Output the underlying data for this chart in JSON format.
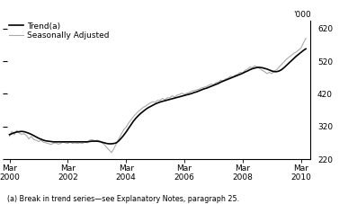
{
  "footnote": "(a) Break in trend series—see Explanatory Notes, paragraph 25.",
  "legend": [
    "Trend(a)",
    "Seasonally Adjusted"
  ],
  "legend_colors": [
    "#000000",
    "#aaaaaa"
  ],
  "xlim_start": 1999.92,
  "xlim_end": 2010.33,
  "ylim_bottom": 220,
  "ylim_top": 645,
  "yticks": [
    220,
    320,
    420,
    520,
    620
  ],
  "xtick_positions": [
    2000.0,
    2002.0,
    2004.0,
    2006.0,
    2008.0,
    2010.0
  ],
  "xtick_labels": [
    "Mar\n2000",
    "Mar\n2002",
    "Mar\n2004",
    "Mar\n2006",
    "Mar\n2008",
    "Mar\n2010"
  ],
  "trend_x": [
    2000.0,
    2000.083,
    2000.167,
    2000.25,
    2000.333,
    2000.417,
    2000.5,
    2000.583,
    2000.667,
    2000.75,
    2000.833,
    2000.917,
    2001.0,
    2001.083,
    2001.167,
    2001.25,
    2001.333,
    2001.417,
    2001.5,
    2001.583,
    2001.667,
    2001.75,
    2001.833,
    2001.917,
    2002.0,
    2002.083,
    2002.167,
    2002.25,
    2002.333,
    2002.417,
    2002.5,
    2002.583,
    2002.667,
    2002.75,
    2002.833,
    2002.917,
    2003.0,
    2003.083,
    2003.167,
    2003.25,
    2003.333,
    2003.417,
    2003.5,
    2003.583,
    2003.667,
    2003.75,
    2003.833,
    2003.917,
    2004.0,
    2004.083,
    2004.167,
    2004.25,
    2004.333,
    2004.417,
    2004.5,
    2004.583,
    2004.667,
    2004.75,
    2004.833,
    2004.917,
    2005.0,
    2005.083,
    2005.167,
    2005.25,
    2005.333,
    2005.417,
    2005.5,
    2005.583,
    2005.667,
    2005.75,
    2005.833,
    2005.917,
    2006.0,
    2006.083,
    2006.167,
    2006.25,
    2006.333,
    2006.417,
    2006.5,
    2006.583,
    2006.667,
    2006.75,
    2006.833,
    2006.917,
    2007.0,
    2007.083,
    2007.167,
    2007.25,
    2007.333,
    2007.417,
    2007.5,
    2007.583,
    2007.667,
    2007.75,
    2007.833,
    2007.917,
    2008.0,
    2008.083,
    2008.167,
    2008.25,
    2008.333,
    2008.417,
    2008.5,
    2008.583,
    2008.667,
    2008.75,
    2008.833,
    2008.917,
    2009.0,
    2009.083,
    2009.167,
    2009.25,
    2009.333,
    2009.417,
    2009.5,
    2009.583,
    2009.667,
    2009.75,
    2009.833,
    2009.917,
    2010.0,
    2010.083,
    2010.167
  ],
  "trend_y": [
    295,
    298,
    301,
    303,
    304,
    305,
    304,
    302,
    299,
    296,
    292,
    288,
    284,
    281,
    278,
    276,
    275,
    274,
    273,
    273,
    273,
    273,
    273,
    273,
    273,
    273,
    273,
    273,
    273,
    273,
    273,
    273,
    273,
    274,
    275,
    275,
    275,
    274,
    272,
    270,
    268,
    267,
    267,
    268,
    270,
    276,
    284,
    293,
    303,
    314,
    325,
    336,
    345,
    353,
    360,
    366,
    372,
    377,
    381,
    385,
    389,
    392,
    395,
    397,
    399,
    401,
    403,
    405,
    407,
    409,
    411,
    413,
    415,
    417,
    419,
    421,
    424,
    426,
    429,
    432,
    435,
    437,
    440,
    443,
    446,
    449,
    452,
    456,
    459,
    462,
    465,
    468,
    471,
    474,
    477,
    480,
    483,
    487,
    490,
    494,
    497,
    499,
    501,
    501,
    500,
    498,
    496,
    493,
    490,
    488,
    488,
    490,
    494,
    500,
    507,
    514,
    521,
    528,
    535,
    541,
    547,
    553,
    558
  ],
  "sa_x": [
    2000.0,
    2000.083,
    2000.167,
    2000.25,
    2000.333,
    2000.417,
    2000.5,
    2000.583,
    2000.667,
    2000.75,
    2000.833,
    2000.917,
    2001.0,
    2001.083,
    2001.167,
    2001.25,
    2001.333,
    2001.417,
    2001.5,
    2001.583,
    2001.667,
    2001.75,
    2001.833,
    2001.917,
    2002.0,
    2002.083,
    2002.167,
    2002.25,
    2002.333,
    2002.417,
    2002.5,
    2002.583,
    2002.667,
    2002.75,
    2002.833,
    2002.917,
    2003.0,
    2003.083,
    2003.167,
    2003.25,
    2003.333,
    2003.417,
    2003.5,
    2003.583,
    2003.667,
    2003.75,
    2003.833,
    2003.917,
    2004.0,
    2004.083,
    2004.167,
    2004.25,
    2004.333,
    2004.417,
    2004.5,
    2004.583,
    2004.667,
    2004.75,
    2004.833,
    2004.917,
    2005.0,
    2005.083,
    2005.167,
    2005.25,
    2005.333,
    2005.417,
    2005.5,
    2005.583,
    2005.667,
    2005.75,
    2005.833,
    2005.917,
    2006.0,
    2006.083,
    2006.167,
    2006.25,
    2006.333,
    2006.417,
    2006.5,
    2006.583,
    2006.667,
    2006.75,
    2006.833,
    2006.917,
    2007.0,
    2007.083,
    2007.167,
    2007.25,
    2007.333,
    2007.417,
    2007.5,
    2007.583,
    2007.667,
    2007.75,
    2007.833,
    2007.917,
    2008.0,
    2008.083,
    2008.167,
    2008.25,
    2008.333,
    2008.417,
    2008.5,
    2008.583,
    2008.667,
    2008.75,
    2008.833,
    2008.917,
    2009.0,
    2009.083,
    2009.167,
    2009.25,
    2009.333,
    2009.417,
    2009.5,
    2009.583,
    2009.667,
    2009.75,
    2009.833,
    2009.917,
    2010.0,
    2010.083,
    2010.167
  ],
  "sa_y": [
    290,
    305,
    295,
    308,
    300,
    296,
    298,
    292,
    282,
    290,
    280,
    278,
    274,
    278,
    272,
    270,
    268,
    265,
    268,
    270,
    266,
    268,
    272,
    270,
    268,
    272,
    268,
    270,
    268,
    270,
    268,
    272,
    270,
    278,
    280,
    276,
    278,
    276,
    270,
    265,
    256,
    248,
    240,
    252,
    268,
    282,
    296,
    310,
    318,
    330,
    340,
    350,
    358,
    366,
    372,
    378,
    382,
    388,
    392,
    396,
    394,
    400,
    400,
    406,
    402,
    408,
    408,
    414,
    410,
    416,
    418,
    422,
    418,
    422,
    424,
    428,
    430,
    432,
    434,
    438,
    440,
    442,
    446,
    450,
    448,
    454,
    456,
    462,
    460,
    466,
    468,
    474,
    472,
    478,
    480,
    486,
    484,
    492,
    496,
    502,
    500,
    506,
    502,
    498,
    492,
    488,
    482,
    486,
    482,
    490,
    494,
    502,
    510,
    518,
    526,
    532,
    538,
    544,
    548,
    554,
    560,
    576,
    590
  ],
  "trend_color": "#000000",
  "sa_color": "#aaaaaa",
  "trend_lw": 1.2,
  "sa_lw": 0.8,
  "tick_fontsize": 6.5,
  "legend_fontsize": 6.5,
  "footnote_fontsize": 5.8
}
